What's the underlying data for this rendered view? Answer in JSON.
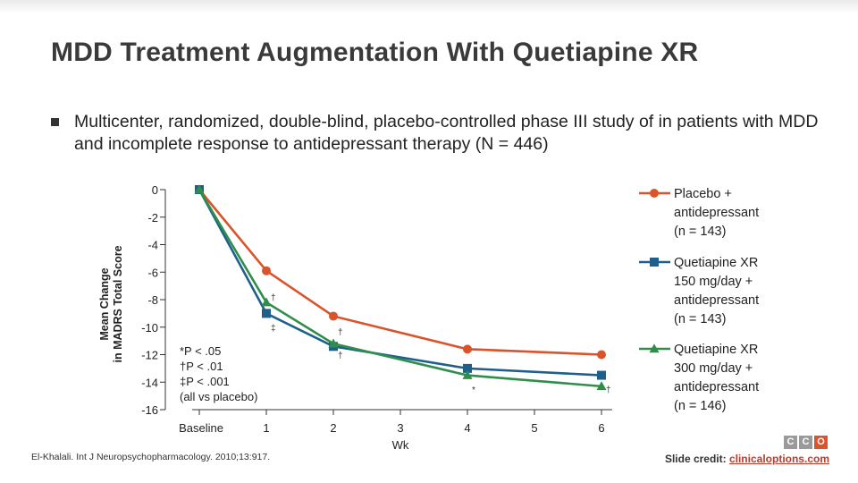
{
  "slide": {
    "title": "MDD Treatment Augmentation With Quetiapine XR",
    "bullet": "Multicenter, randomized, double-blind, placebo-controlled phase III study of in patients with MDD and incomplete response to antidepressant therapy (N = 446)",
    "citation": "El-Khalali. Int J Neuropsychopharmacology. 2010;13:917.",
    "credit_label": "Slide credit:",
    "credit_link": "clinicaloptions.com",
    "logo_letters": [
      "C",
      "C",
      "O"
    ]
  },
  "chart_data": {
    "type": "line",
    "title": "",
    "xlabel": "Wk",
    "ylabel": "Mean Change in MADRS Total Score",
    "xlim": [
      0,
      6
    ],
    "ylim": [
      -16,
      0
    ],
    "x_ticks": [
      {
        "x": 0,
        "label": "Baseline"
      },
      {
        "x": 1,
        "label": "1"
      },
      {
        "x": 2,
        "label": "2"
      },
      {
        "x": 3,
        "label": "3"
      },
      {
        "x": 4,
        "label": "4"
      },
      {
        "x": 5,
        "label": "5"
      },
      {
        "x": 6,
        "label": "6"
      }
    ],
    "y_ticks": [
      0,
      -2,
      -4,
      -6,
      -8,
      -10,
      -12,
      -14,
      -16
    ],
    "series": [
      {
        "name": "Placebo + antidepressant (n = 143)",
        "legend_lines": [
          "Placebo +",
          "antidepressant",
          "(n = 143)"
        ],
        "marker": "circle",
        "color": "#d9532b",
        "points": [
          [
            0,
            0
          ],
          [
            1,
            -5.9
          ],
          [
            2,
            -9.2
          ],
          [
            4,
            -11.6
          ],
          [
            6,
            -12.0
          ]
        ]
      },
      {
        "name": "Quetiapine XR 150 mg/day + antidepressant (n = 143)",
        "legend_lines": [
          "Quetiapine XR",
          "150 mg/day +",
          "antidepressant",
          "(n = 143)"
        ],
        "marker": "square",
        "color": "#1f5f8b",
        "points": [
          [
            0,
            0
          ],
          [
            1,
            -9.0
          ],
          [
            2,
            -11.4
          ],
          [
            4,
            -13.0
          ],
          [
            6,
            -13.5
          ]
        ]
      },
      {
        "name": "Quetiapine XR 300 mg/day + antidepressant (n = 146)",
        "legend_lines": [
          "Quetiapine XR",
          "300 mg/day +",
          "antidepressant",
          "(n = 146)"
        ],
        "marker": "triangle",
        "color": "#2f8f4a",
        "points": [
          [
            0,
            0
          ],
          [
            1,
            -8.2
          ],
          [
            2,
            -11.2
          ],
          [
            4,
            -13.5
          ],
          [
            6,
            -14.3
          ]
        ]
      }
    ],
    "significance_marks": [
      {
        "x": 1,
        "y": -7.8,
        "text": "†"
      },
      {
        "x": 1,
        "y": -10.0,
        "text": "‡"
      },
      {
        "x": 2,
        "y": -10.3,
        "text": "†"
      },
      {
        "x": 2,
        "y": -12.0,
        "text": "†"
      },
      {
        "x": 4,
        "y": -14.5,
        "text": "*"
      },
      {
        "x": 6,
        "y": -14.5,
        "text": "†"
      }
    ],
    "footnotes": [
      "*P < .05",
      "†P < .01",
      "‡P < .001",
      "(all vs placebo)"
    ],
    "grid": false,
    "legend_placement": "right"
  }
}
